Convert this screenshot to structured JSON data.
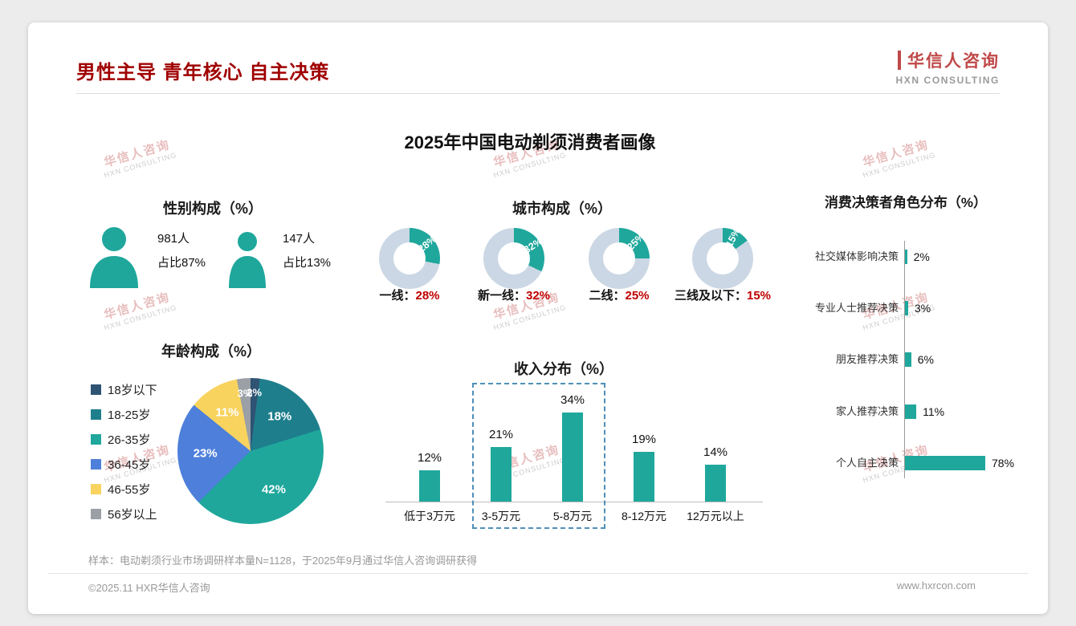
{
  "header": {
    "title": "男性主导 青年核心 自主决策",
    "logo": {
      "cn": "华信人咨询",
      "en": "HXN CONSULTING"
    }
  },
  "main_title": "2025年中国电动剃须消费者画像",
  "watermark": {
    "cn": "华信人咨询",
    "en": "HXN CONSULTING"
  },
  "footnote": "样本：电动剃须行业市场调研样本量N=1128，于2025年9月通过华信人咨询调研获得",
  "footer": {
    "left": "©2025.11 HXR华信人咨询",
    "right": "www.hxrcon.com"
  },
  "colors": {
    "teal": "#1FA79C",
    "donut_rest": "#CBD7E4",
    "title_red": "#A00000",
    "value_red": "#C00000",
    "pie": [
      "#2F5373",
      "#1E7E8C",
      "#1FA79C",
      "#4D7FDB",
      "#F8D35E",
      "#9AA0A6"
    ]
  },
  "chart_data": [
    {
      "id": "gender",
      "type": "pictogram",
      "title": "性别构成（%）",
      "items": [
        {
          "icon": "male-icon",
          "count": "981人",
          "share": "占比87%"
        },
        {
          "icon": "female-icon",
          "count": "147人",
          "share": "占比13%"
        }
      ]
    },
    {
      "id": "city",
      "type": "donut-set",
      "title": "城市构成（%）",
      "items": [
        {
          "label": "一线",
          "value": 28
        },
        {
          "label": "新一线",
          "value": 32
        },
        {
          "label": "二线",
          "value": 25
        },
        {
          "label": "三线及以下",
          "value": 15
        }
      ],
      "legend_note": "teal segment = share, rest light blue-gray"
    },
    {
      "id": "decision",
      "type": "bar-horizontal",
      "title": "消费决策者角色分布（%）",
      "categories": [
        "社交媒体影响决策",
        "专业人士推荐决策",
        "朋友推荐决策",
        "家人推荐决策",
        "个人自主决策"
      ],
      "values": [
        2,
        3,
        6,
        11,
        78
      ],
      "xlim": [
        0,
        80
      ]
    },
    {
      "id": "age",
      "type": "pie",
      "title": "年龄构成（%）",
      "categories": [
        "18岁以下",
        "18-25岁",
        "26-35岁",
        "36-45岁",
        "46-55岁",
        "56岁以上"
      ],
      "values": [
        2,
        18,
        42,
        23,
        11,
        3
      ],
      "legend_position": "left"
    },
    {
      "id": "income",
      "type": "bar",
      "title": "收入分布（%）",
      "categories": [
        "低于3万元",
        "3-5万元",
        "5-8万元",
        "8-12万元",
        "12万元以上"
      ],
      "values": [
        12,
        21,
        34,
        19,
        14
      ],
      "ylim": [
        0,
        40
      ],
      "highlight_categories": [
        "3-5万元",
        "5-8万元"
      ]
    }
  ]
}
